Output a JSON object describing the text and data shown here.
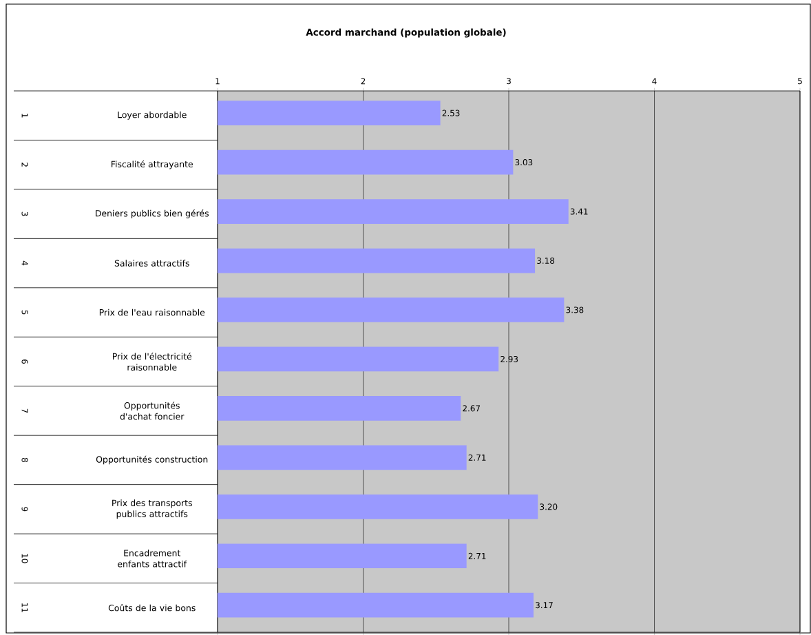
{
  "chart_data": {
    "type": "bar",
    "orientation": "horizontal",
    "title": "Accord marchand (population globale)",
    "categories": [
      "Loyer abordable",
      "Fiscalité attrayante",
      "Deniers publics bien gérés",
      "Salaires attractifs",
      "Prix de l'eau raisonnable",
      "Prix de l'électricité raisonnable",
      "Opportunités d'achat foncier",
      "Opportunités construction",
      "Prix des transports publics attractifs",
      "Encadrement enfants attractif",
      "Coûts de la vie bons"
    ],
    "values": [
      2.53,
      3.03,
      3.41,
      3.18,
      3.38,
      2.93,
      2.67,
      2.71,
      3.2,
      2.71,
      3.17
    ],
    "value_labels": [
      "2.53",
      "3.03",
      "3.41",
      "3.18",
      "3.38",
      "2.93",
      "2.67",
      "2.71",
      "3.20",
      "2.71",
      "3.17"
    ],
    "color": "#9999ff",
    "xlim": [
      1,
      5
    ],
    "xticks": [
      1,
      2,
      3,
      4,
      5
    ],
    "grid": "x",
    "annotations": [
      "1",
      "2",
      "3",
      "4",
      "5",
      "6",
      "7",
      "8",
      "9",
      "10",
      "11"
    ]
  }
}
